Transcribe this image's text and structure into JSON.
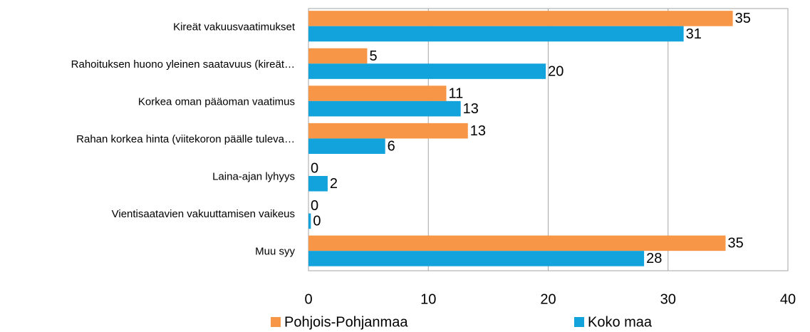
{
  "chart_data": {
    "type": "hbar",
    "categories": [
      "Kireät vakuusvaatimukset",
      "Rahoituksen huono yleinen saatavuus (kireät…",
      "Korkea oman pääoman vaatimus",
      "Rahan korkea hinta (viitekoron päälle tuleva…",
      "Laina-ajan lyhyys",
      "Vientisaatavien vakuuttamisen vaikeus",
      "Muu syy"
    ],
    "series": [
      {
        "name": "Pohjois-Pohjanmaa",
        "color": "#f79646",
        "values": [
          35.4,
          4.9,
          11.5,
          13.3,
          0,
          0,
          34.8
        ],
        "value_labels": [
          "35",
          "5",
          "11",
          "13",
          "0",
          "0",
          "35"
        ]
      },
      {
        "name": "Koko maa",
        "color": "#13a3dc",
        "values": [
          31.3,
          19.8,
          12.7,
          6.4,
          1.6,
          0.2,
          28.0
        ],
        "value_labels": [
          "31",
          "20",
          "13",
          "6",
          "2",
          "0",
          "28"
        ]
      }
    ],
    "xlim": [
      0,
      40
    ],
    "xticks": [
      0,
      10,
      20,
      30,
      40
    ],
    "grid": true,
    "legend": "bottom"
  }
}
